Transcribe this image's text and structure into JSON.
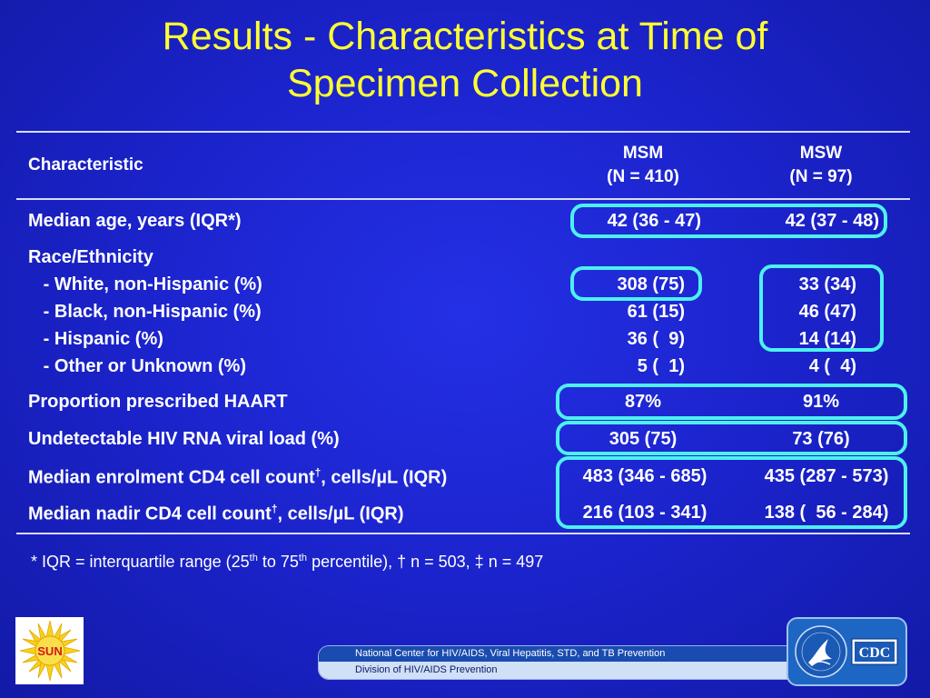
{
  "title": {
    "line1": "Results - Characteristics at Time of",
    "line2": "Specimen Collection"
  },
  "header": {
    "characteristic": "Characteristic",
    "msm_name": "MSM",
    "msm_n": "(N = 410)",
    "msw_name": "MSW",
    "msw_n": "(N = 97)"
  },
  "rows": {
    "age": {
      "label": "Median age, years (IQR*)",
      "msm": "42 (36 - 47)",
      "msw": "42 (37 - 48)"
    },
    "race_heading": "Race/Ethnicity",
    "white": {
      "label": "   - White, non-Hispanic (%)",
      "msm": "308 (75)",
      "msw": "33 (34)"
    },
    "black": {
      "label": "   - Black, non-Hispanic (%)",
      "msm": "61 (15)",
      "msw": "46 (47)"
    },
    "hispanic": {
      "label": "   - Hispanic (%)",
      "msm": "36 (  9)",
      "msw": "14 (14)"
    },
    "other": {
      "label": "   - Other or Unknown (%)",
      "msm": "5 (  1)",
      "msw": "4 (  4)"
    },
    "haart": {
      "label": "Proportion prescribed HAART",
      "msm": "87%",
      "msw": "91%"
    },
    "viral": {
      "label": "Undetectable HIV RNA viral load (%)",
      "msm": "305 (75)",
      "msw": "73 (76)"
    },
    "cd4_enrol": {
      "label_a": "Median enrolment CD4 cell count",
      "sup": "†",
      "label_b": ", cells/µL (IQR)",
      "msm": "483 (346 - 685)",
      "msw": "435 (287 - 573)"
    },
    "cd4_nadir": {
      "label_a": "Median nadir CD4 cell count",
      "sup": "†",
      "label_b": ", cells/µL (IQR)",
      "msm": "216 (103 - 341)",
      "msw": "138 (  56 - 284)"
    }
  },
  "footnote": {
    "a": "*  IQR = interquartile range (25",
    "sup1": "th",
    "b": " to 75",
    "sup2": "th",
    "c": " percentile), † n = 503, ‡ n =  497"
  },
  "logos": {
    "sun_text": "SUN",
    "cdc_text": "CDC"
  },
  "banner": {
    "line1": "National Center for HIV/AIDS, Viral Hepatitis, STD, and TB Prevention",
    "line2": "Division of HIV/AIDS Prevention"
  },
  "colors": {
    "title": "#ffff33",
    "highlight": "#4ef0ee",
    "background": "#1a22c8"
  }
}
